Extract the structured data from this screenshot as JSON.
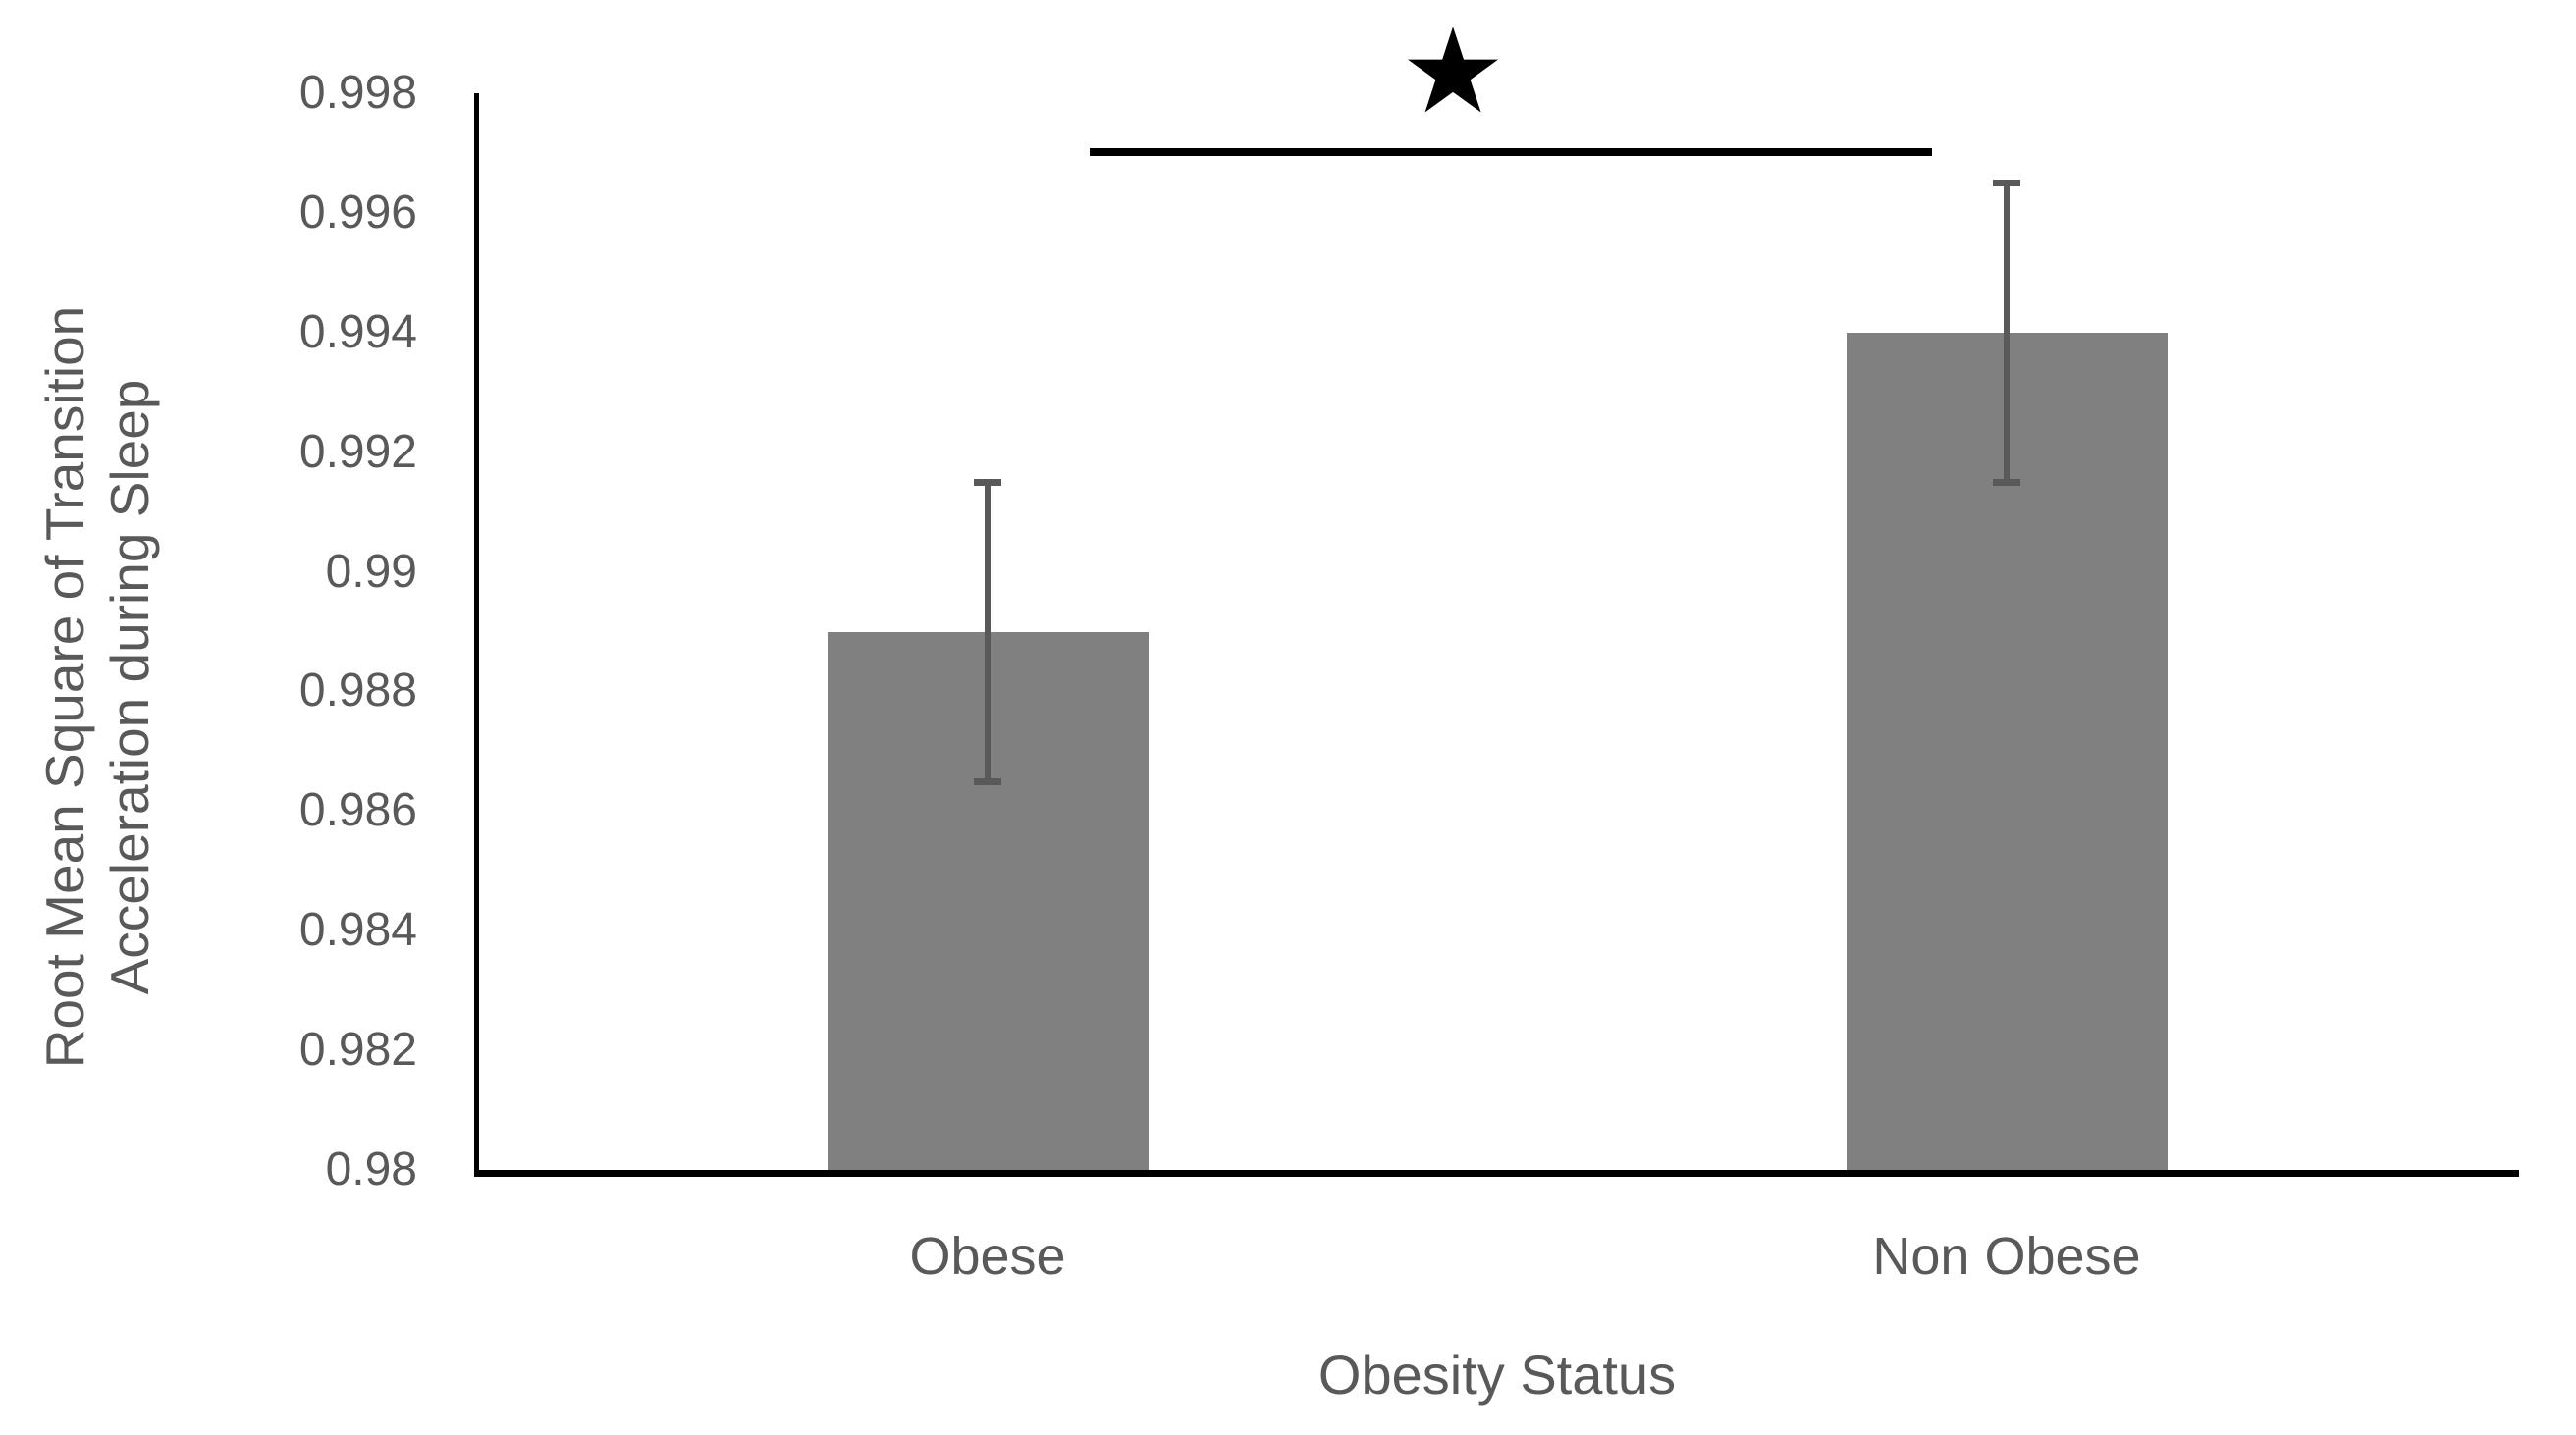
{
  "chart_data": {
    "type": "bar",
    "title": "",
    "categories": [
      "Obese",
      "Non Obese"
    ],
    "values": [
      0.989,
      0.994
    ],
    "errors": [
      0.0025,
      0.0025
    ],
    "xlabel": "Obesity Status",
    "ylabel_line1": "Root Mean Square of Transition",
    "ylabel_line2": "Acceleration during Sleep",
    "ylim": [
      0.98,
      0.998
    ],
    "ytick_labels": [
      "0.998",
      "0.996",
      "0.994",
      "0.992",
      "0.99",
      "0.988",
      "0.986",
      "0.984",
      "0.982",
      "0.98"
    ],
    "grid": false,
    "legend": false,
    "significance": {
      "symbol": "★",
      "between": [
        "Obese",
        "Non Obese"
      ],
      "y_value": 0.997
    },
    "colors": {
      "bar": "#808080",
      "error_bar": "#595959",
      "axis": "#000000",
      "text": "#595959",
      "significance": "#000000"
    }
  }
}
